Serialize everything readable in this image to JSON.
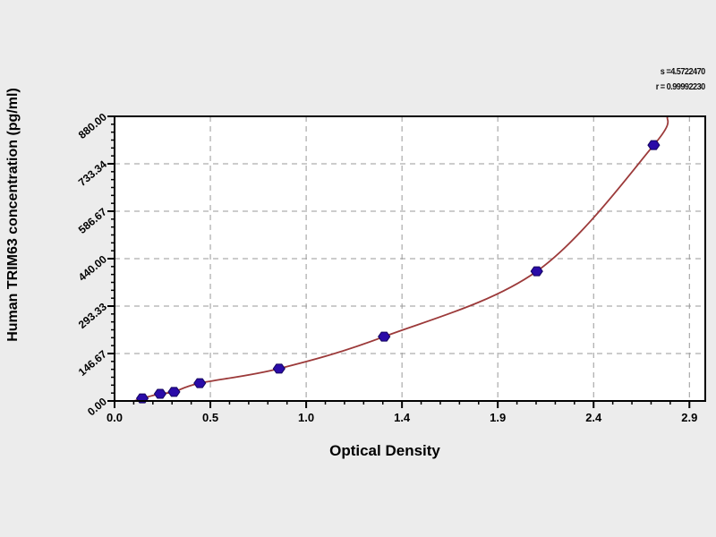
{
  "page": {
    "background": "#ececec",
    "plot_background": "#ffffff"
  },
  "chart_data": {
    "type": "scatter",
    "title": "",
    "xlabel": "Optical Density",
    "ylabel": "Human TRIM63 concentration (pg/ml)",
    "xlim": [
      0,
      2.98
    ],
    "ylim": [
      0,
      880
    ],
    "grid": true,
    "grid_style": "dashed",
    "x_ticks": {
      "values": [
        0,
        0.4833,
        0.9667,
        1.45,
        1.9333,
        2.4167,
        2.9
      ],
      "labels": [
        "0.0",
        "0.5",
        "1.0",
        "1.4",
        "1.9",
        "2.4",
        "2.9"
      ],
      "minor_per_major": 4
    },
    "y_ticks": {
      "values": [
        0,
        146.67,
        293.33,
        440.0,
        586.67,
        733.34,
        880.0
      ],
      "labels": [
        "0.00",
        "146.67",
        "293.33",
        "440.00",
        "586.67",
        "733.34",
        "880.00"
      ],
      "minor_per_major": 5
    },
    "series": [
      {
        "name": "standard-points",
        "type": "scatter",
        "marker": "hex-diamond",
        "color": "#2a0ba8",
        "stroke": "#14055e",
        "x": [
          0.14,
          0.23,
          0.3,
          0.43,
          0.83,
          1.36,
          2.13,
          2.72
        ],
        "y": [
          8,
          22,
          28,
          55,
          100,
          199,
          401,
          791
        ]
      },
      {
        "name": "fit-curve",
        "type": "line",
        "color": "#9c3a3a",
        "x": [
          0.1,
          0.14,
          0.23,
          0.3,
          0.43,
          0.83,
          1.36,
          2.13,
          2.72,
          2.79
        ],
        "y": [
          0,
          8,
          22,
          28,
          55,
          100,
          199,
          401,
          791,
          880
        ]
      }
    ],
    "annotations": [
      {
        "text": "s =4.5722470"
      },
      {
        "text": "r = 0.99992230"
      }
    ],
    "colors": {
      "frame": "#000000",
      "grid": "#999999",
      "curve": "#9c3a3a",
      "point_fill": "#2a0ba8",
      "point_stroke": "#14055e"
    }
  }
}
